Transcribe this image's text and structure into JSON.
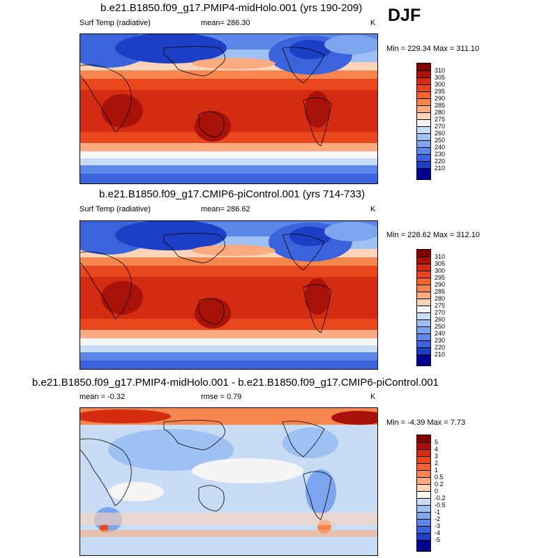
{
  "season": "DJF",
  "panels": [
    {
      "title": "b.e21.B1850.f09_g17.PMIP4-midHolo.001 (yrs 190-209)",
      "left": "Surf Temp (radiative)",
      "center": "mean= 286.30",
      "units": "K",
      "minmax": "Min = 229.34 Max = 311.10",
      "colorbar": {
        "labels": [
          "310",
          "305",
          "300",
          "295",
          "290",
          "285",
          "280",
          "275",
          "270",
          "260",
          "250",
          "240",
          "230",
          "220",
          "210"
        ],
        "colors": [
          "#800000",
          "#a81208",
          "#d42c12",
          "#e8471e",
          "#f2642e",
          "#f7854e",
          "#fbab7f",
          "#fdd4b8",
          "#f5f5f5",
          "#c9dcf6",
          "#9fc0f2",
          "#7da6ee",
          "#5a87e8",
          "#3a63dc",
          "#1d3fc6",
          "#00008a"
        ]
      }
    },
    {
      "title": "b.e21.B1850.f09_g17.CMIP6-piControl.001 (yrs 714-733)",
      "left": "Surf Temp (radiative)",
      "center": "mean= 286.62",
      "units": "K",
      "minmax": "Min = 228.62 Max = 312.10",
      "colorbar": {
        "labels": [
          "310",
          "305",
          "300",
          "295",
          "290",
          "285",
          "280",
          "275",
          "270",
          "260",
          "250",
          "240",
          "230",
          "220",
          "210"
        ],
        "colors": [
          "#800000",
          "#a81208",
          "#d42c12",
          "#e8471e",
          "#f2642e",
          "#f7854e",
          "#fbab7f",
          "#fdd4b8",
          "#f5f5f5",
          "#c9dcf6",
          "#9fc0f2",
          "#7da6ee",
          "#5a87e8",
          "#3a63dc",
          "#1d3fc6",
          "#00008a"
        ]
      }
    },
    {
      "title": "b.e21.B1850.f09_g17.PMIP4-midHolo.001 - b.e21.B1850.f09_g17.CMIP6-piControl.001",
      "left": "mean =  -0.32",
      "center": "rmse =   0.79",
      "units": "K",
      "minmax": "Min =  -4.39 Max =   7.73",
      "colorbar": {
        "labels": [
          "5",
          "4",
          "3",
          "2",
          "1",
          "0.5",
          "0.2",
          "0",
          "-0.2",
          "-0.5",
          "-1",
          "-2",
          "-3",
          "-4",
          "-5"
        ],
        "colors": [
          "#800000",
          "#a81208",
          "#d42c12",
          "#e8471e",
          "#f2642e",
          "#f7854e",
          "#fbab7f",
          "#fdd4b8",
          "#f5f5f5",
          "#c9dcf6",
          "#9fc0f2",
          "#7da6ee",
          "#5a87e8",
          "#3a63dc",
          "#1d3fc6",
          "#00008a"
        ]
      }
    }
  ]
}
